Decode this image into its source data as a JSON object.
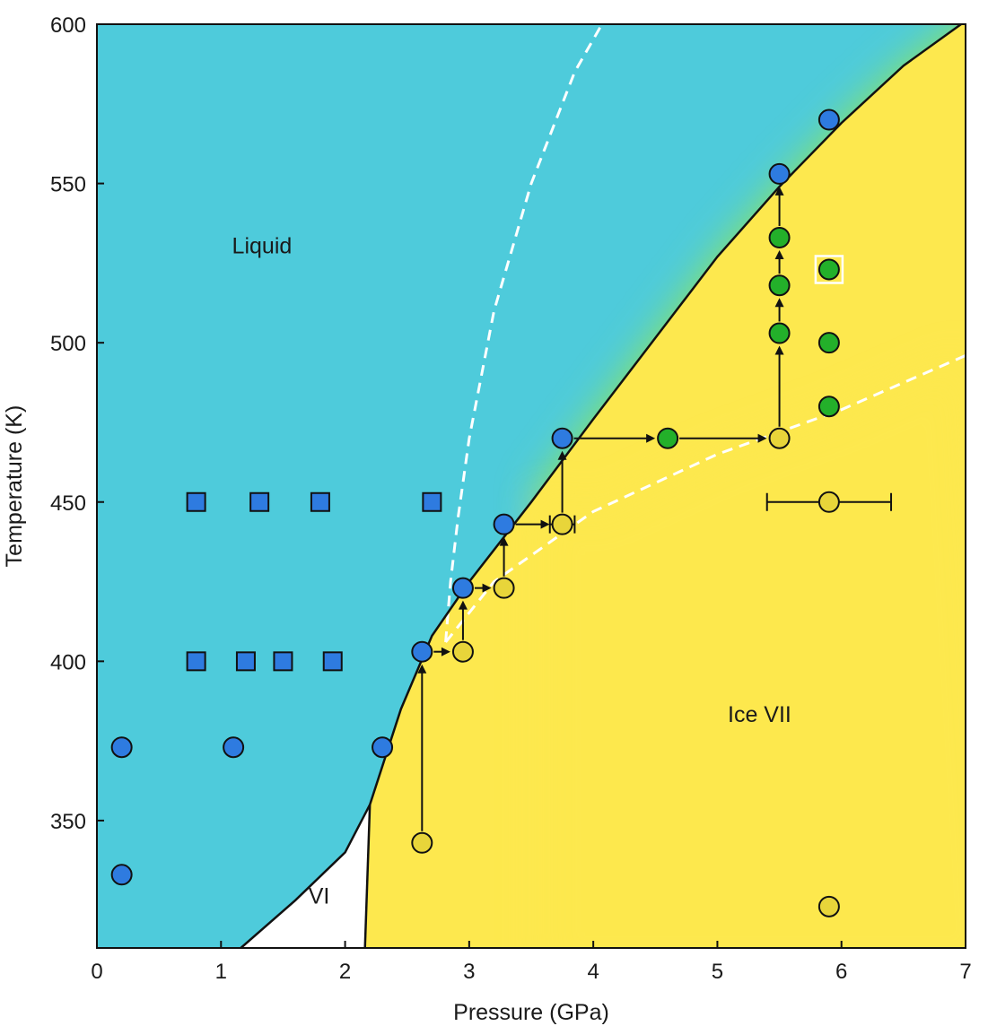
{
  "chart_data": {
    "type": "scatter",
    "xlabel": "Pressure (GPa)",
    "ylabel": "Temperature (K)",
    "xlim": [
      0,
      7
    ],
    "ylim": [
      310,
      600
    ],
    "x_ticks": [
      "0",
      "1",
      "2",
      "3",
      "4",
      "5",
      "6",
      "7"
    ],
    "y_ticks": [
      "350",
      "400",
      "450",
      "500",
      "550",
      "600"
    ],
    "grid": false,
    "regions": [
      {
        "key": "liquid",
        "label": "Liquid",
        "label_at": [
          1.33,
          528
        ],
        "color": "#4ecbdb"
      },
      {
        "key": "ice_vii",
        "label": "Ice  VII",
        "label_at": [
          5.34,
          381
        ],
        "color": "#fde84e"
      },
      {
        "key": "ice_vi",
        "label": "VI",
        "label_at": [
          1.79,
          324
        ],
        "color": "#ffffff"
      },
      {
        "key": "superionic",
        "label": "",
        "color": "#8ee55a"
      }
    ],
    "boundaries": {
      "melting_curve": [
        [
          1.16,
          310
        ],
        [
          1.6,
          325
        ],
        [
          2.0,
          340
        ],
        [
          2.2,
          355
        ],
        [
          2.45,
          385
        ],
        [
          2.7,
          408
        ],
        [
          3.0,
          425
        ],
        [
          3.5,
          450
        ],
        [
          4.0,
          476
        ],
        [
          5.0,
          527
        ],
        [
          5.5,
          549
        ],
        [
          6.0,
          569
        ],
        [
          6.5,
          587
        ],
        [
          7.0,
          601
        ]
      ],
      "vi_vii_boundary": [
        [
          2.2,
          355
        ],
        [
          2.16,
          310
        ]
      ],
      "dashed_liquid_branch": [
        [
          2.81,
          406
        ],
        [
          2.85,
          425
        ],
        [
          2.91,
          445
        ],
        [
          3.0,
          470
        ],
        [
          3.2,
          510
        ],
        [
          3.5,
          550
        ],
        [
          3.85,
          585
        ],
        [
          4.07,
          600
        ]
      ],
      "dashed_superionic_branch": [
        [
          2.81,
          406
        ],
        [
          3.2,
          425
        ],
        [
          4.0,
          447
        ],
        [
          5.0,
          465
        ],
        [
          6.0,
          479
        ],
        [
          7.0,
          496
        ]
      ]
    },
    "series": [
      {
        "phase": "liquid",
        "marker": "square",
        "color": "#2e7be0",
        "x": [
          0.8,
          1.31,
          1.8,
          2.7,
          0.8,
          1.2,
          1.5,
          1.9
        ],
        "y": [
          450,
          450,
          450,
          450,
          400,
          400,
          400,
          400
        ]
      },
      {
        "phase": "liquid",
        "marker": "circle",
        "color": "#2e7be0",
        "x": [
          0.2,
          1.1,
          2.3,
          0.2,
          2.62,
          2.95,
          3.28,
          3.75,
          5.5,
          5.9
        ],
        "y": [
          373,
          373,
          373,
          333,
          403,
          423,
          443,
          470,
          553,
          570
        ]
      },
      {
        "phase": "ice_vii",
        "marker": "circle",
        "color": "#e8d53a",
        "x": [
          2.62,
          2.95,
          3.28,
          3.75,
          5.5,
          5.9,
          5.9
        ],
        "y": [
          343,
          403,
          423,
          443,
          470,
          450,
          323
        ]
      },
      {
        "phase": "superionic",
        "marker": "circle",
        "color": "#23b02a",
        "x": [
          4.6,
          5.5,
          5.5,
          5.5,
          5.9,
          5.9,
          5.9
        ],
        "y": [
          470,
          503,
          518,
          533,
          523,
          500,
          480
        ]
      }
    ],
    "highlighted_point": [
      5.9,
      523
    ],
    "error_bars": [
      {
        "x": 5.9,
        "y": 450,
        "xerr": 0.5
      },
      {
        "x": 3.75,
        "y": 443,
        "xerr": 0.1
      }
    ],
    "arrows": [
      {
        "from": [
          2.62,
          343
        ],
        "to": [
          2.62,
          403
        ]
      },
      {
        "from": [
          2.62,
          403
        ],
        "to": [
          2.95,
          403
        ]
      },
      {
        "from": [
          2.95,
          403
        ],
        "to": [
          2.95,
          423
        ]
      },
      {
        "from": [
          2.95,
          423
        ],
        "to": [
          3.28,
          423
        ]
      },
      {
        "from": [
          3.28,
          423
        ],
        "to": [
          3.28,
          443
        ]
      },
      {
        "from": [
          3.28,
          443
        ],
        "to": [
          3.75,
          443
        ]
      },
      {
        "from": [
          3.75,
          443
        ],
        "to": [
          3.75,
          470
        ]
      },
      {
        "from": [
          3.75,
          470
        ],
        "to": [
          4.6,
          470
        ]
      },
      {
        "from": [
          4.6,
          470
        ],
        "to": [
          5.5,
          470
        ]
      },
      {
        "from": [
          5.5,
          470
        ],
        "to": [
          5.5,
          503
        ]
      },
      {
        "from": [
          5.5,
          503
        ],
        "to": [
          5.5,
          518
        ]
      },
      {
        "from": [
          5.5,
          518
        ],
        "to": [
          5.5,
          533
        ]
      },
      {
        "from": [
          5.5,
          533
        ],
        "to": [
          5.5,
          553
        ]
      }
    ]
  }
}
